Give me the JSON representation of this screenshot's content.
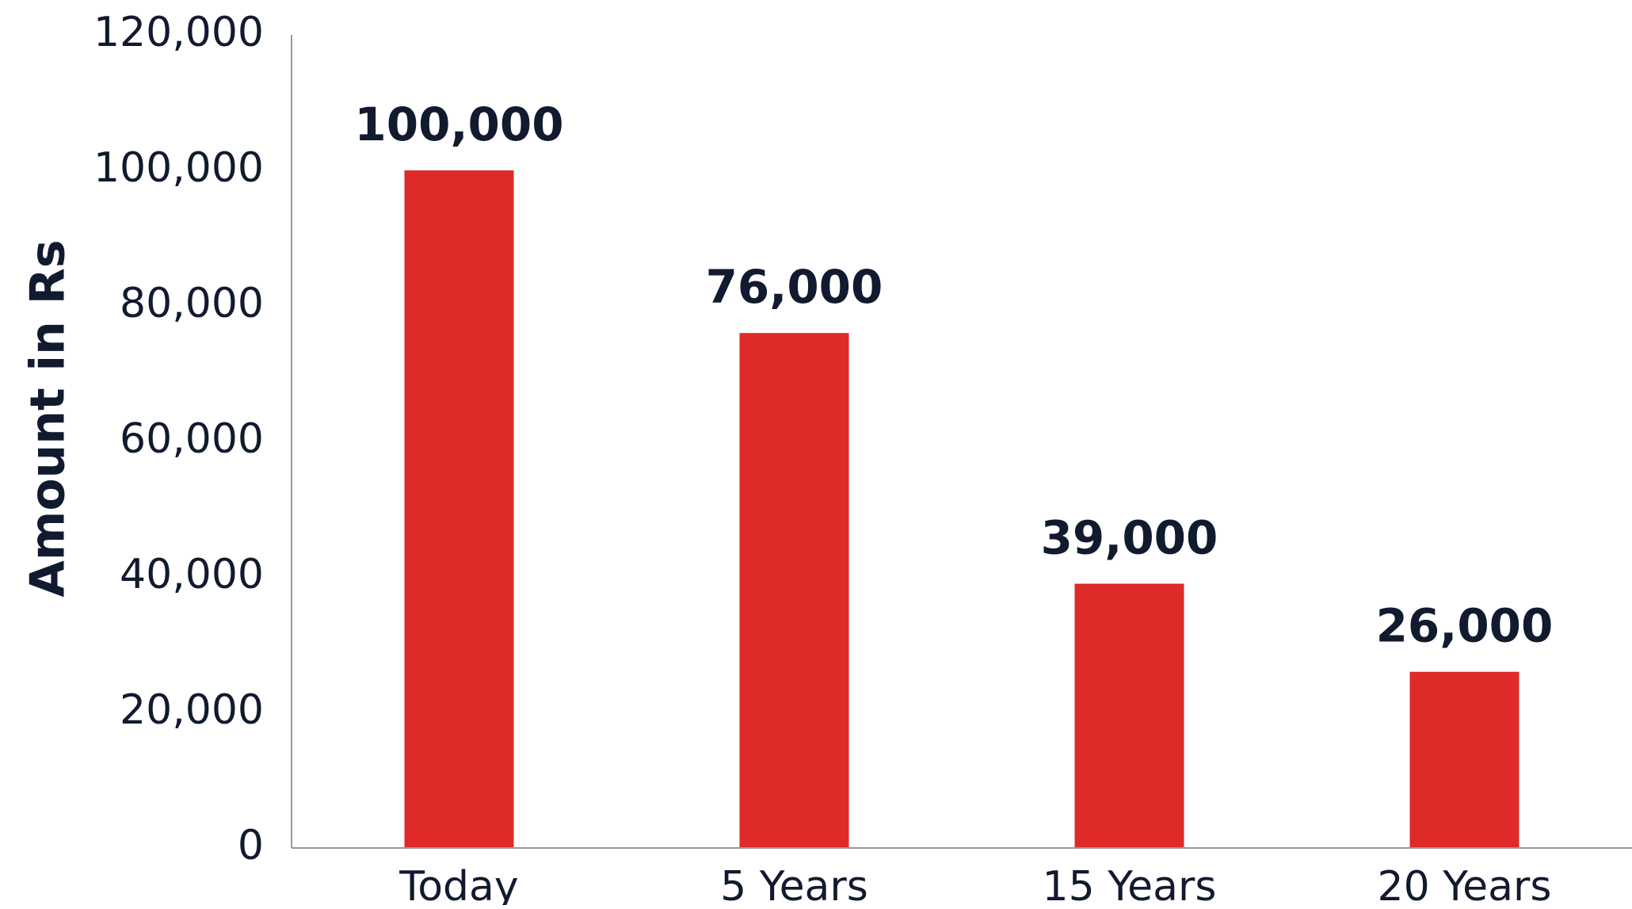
{
  "chart_data": {
    "type": "bar",
    "title": "",
    "xlabel": "",
    "ylabel": "Amount in Rs",
    "categories": [
      "Today",
      "5 Years",
      "15 Years",
      "20 Years"
    ],
    "values": [
      100000,
      76000,
      39000,
      26000
    ],
    "data_labels": [
      "100,000",
      "76,000",
      "39,000",
      "26,000"
    ],
    "ylim": [
      0,
      120000
    ],
    "y_ticks": [
      0,
      20000,
      40000,
      60000,
      80000,
      100000,
      120000
    ],
    "y_tick_labels": [
      "0",
      "20,000",
      "40,000",
      "60,000",
      "80,000",
      "100,000",
      "120,000"
    ],
    "grid": false,
    "legend": "none",
    "colors": {
      "bar": "#df2a2a",
      "axis": "#999999",
      "text": "#111a2e"
    }
  }
}
